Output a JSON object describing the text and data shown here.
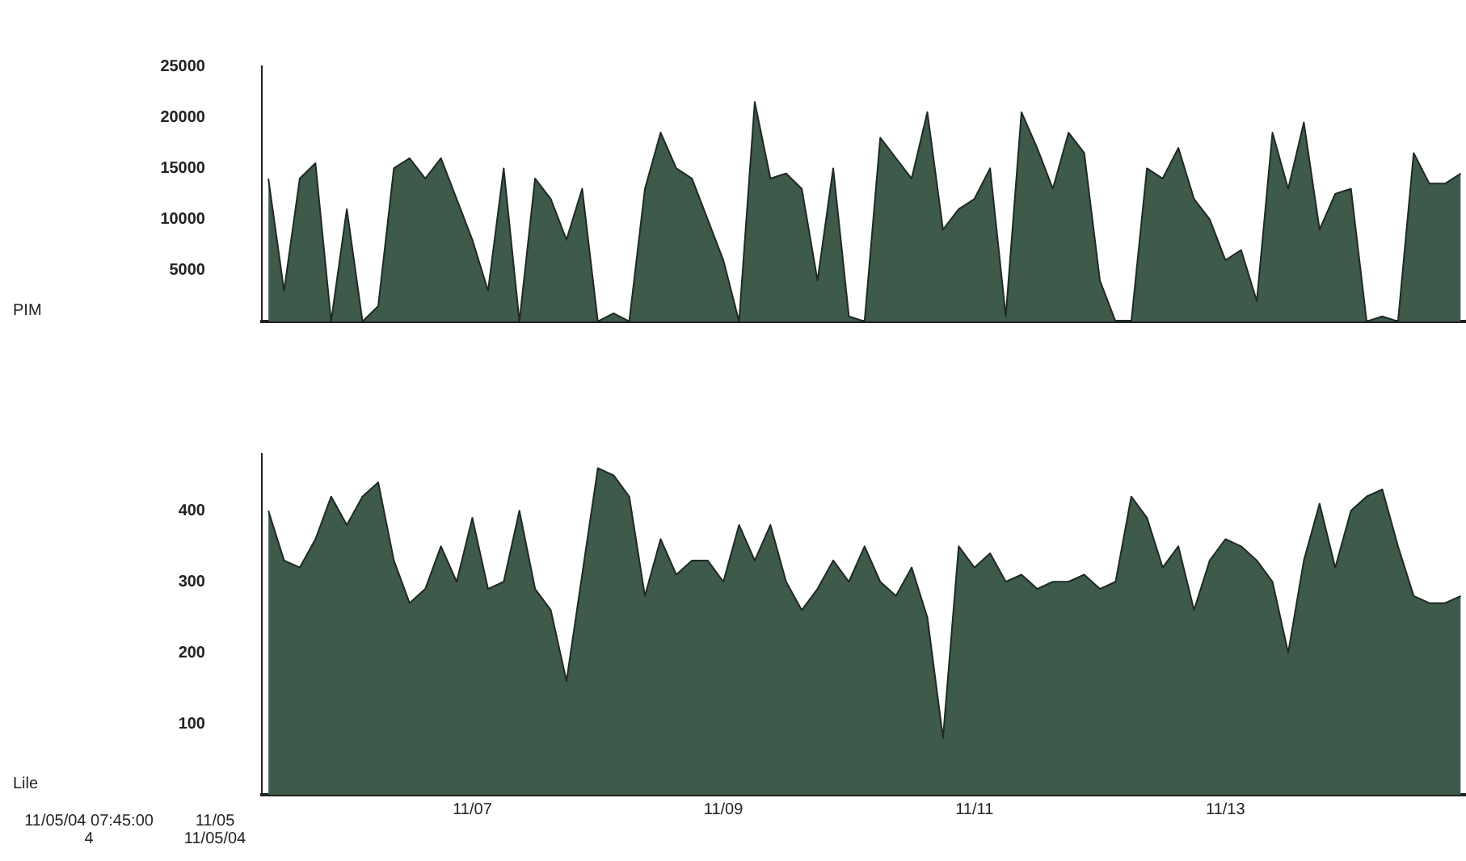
{
  "chart_data": [
    {
      "type": "area",
      "ylabel": "PIM",
      "tick_labels": "y",
      "grid": false,
      "x": [
        "--11-05T09:00",
        "--11-05T12:00",
        "--11-05T15:00",
        "--11-05T18:00",
        "--11-05T21:00",
        "--11-06T00:00",
        "--11-06T03:00",
        "--11-06T06:00",
        "--11-06T09:00",
        "--11-06T12:00",
        "--11-06T15:00",
        "--11-06T18:00",
        "--11-06T21:00",
        "--11-07T00:00",
        "--11-07T03:00",
        "--11-07T06:00",
        "--11-07T09:00",
        "--11-07T12:00",
        "--11-07T15:00",
        "--11-07T18:00",
        "--11-07T21:00",
        "--11-08T00:00",
        "--11-08T03:00",
        "--11-08T06:00",
        "--11-08T09:00",
        "--11-08T12:00",
        "--11-08T15:00",
        "--11-08T18:00",
        "--11-08T21:00",
        "--11-09T00:00",
        "--11-09T03:00",
        "--11-09T06:00",
        "--11-09T09:00",
        "--11-09T12:00",
        "--11-09T15:00",
        "--11-09T18:00",
        "--11-09T21:00",
        "--11-10T00:00",
        "--11-10T03:00",
        "--11-10T06:00",
        "--11-10T09:00",
        "--11-10T12:00",
        "--11-10T15:00",
        "--11-10T18:00",
        "--11-10T21:00",
        "--11-11T00:00",
        "--11-11T03:00",
        "--11-11T06:00",
        "--11-11T09:00",
        "--11-11T12:00",
        "--11-11T15:00",
        "--11-11T18:00",
        "--11-11T21:00",
        "--11-12T00:00",
        "--11-12T03:00",
        "--11-12T06:00",
        "--11-12T09:00",
        "--11-12T12:00",
        "--11-12T15:00",
        "--11-12T18:00",
        "--11-12T21:00",
        "--11-13T00:00",
        "--11-13T03:00",
        "--11-13T06:00",
        "--11-13T09:00",
        "--11-13T12:00",
        "--11-13T15:00",
        "--11-13T18:00",
        "--11-13T21:00",
        "--11-14T00:00",
        "--11-14T03:00",
        "--11-14T06:00",
        "--11-14T09:00",
        "--11-14T12:00",
        "--11-14T15:00",
        "--11-14T18:00",
        "--11-14T21:00"
      ],
      "xlim": [
        "--11-05T07:45",
        "--11-14T22:00"
      ],
      "ylim": [
        0,
        25000
      ],
      "yticks": [
        5000,
        10000,
        15000,
        20000,
        25000
      ],
      "series": [
        {
          "color": "#3d5a4a",
          "values": [
            14000,
            3000,
            14000,
            15500,
            0,
            11000,
            0,
            1500,
            15000,
            16000,
            14000,
            16000,
            12000,
            8000,
            3000,
            15000,
            0,
            14000,
            12000,
            8000,
            13000,
            0,
            800,
            0,
            13000,
            18500,
            15000,
            14000,
            10000,
            6000,
            0,
            21500,
            14000,
            14500,
            13000,
            4000,
            15000,
            500,
            0,
            18000,
            16000,
            14000,
            20500,
            9000,
            11000,
            12000,
            15000,
            500,
            20500,
            17000,
            13000,
            18500,
            16500,
            4000,
            0,
            0,
            15000,
            14000,
            17000,
            12000,
            10000,
            6000,
            7000,
            2000,
            18500,
            13000,
            19500,
            9000,
            12500,
            13000,
            0,
            500,
            0,
            16500,
            13500,
            13500,
            14500
          ]
        }
      ]
    },
    {
      "type": "area",
      "ylabel": "Lile",
      "grid": false,
      "annotations": [
        "11/05/04 07:45:00",
        "4",
        "11/05",
        "11/05/04"
      ],
      "x": [
        "--11-05T09:00",
        "--11-05T12:00",
        "--11-05T15:00",
        "--11-05T18:00",
        "--11-05T21:00",
        "--11-06T00:00",
        "--11-06T03:00",
        "--11-06T06:00",
        "--11-06T09:00",
        "--11-06T12:00",
        "--11-06T15:00",
        "--11-06T18:00",
        "--11-06T21:00",
        "--11-07T00:00",
        "--11-07T03:00",
        "--11-07T06:00",
        "--11-07T09:00",
        "--11-07T12:00",
        "--11-07T15:00",
        "--11-07T18:00",
        "--11-07T21:00",
        "--11-08T00:00",
        "--11-08T03:00",
        "--11-08T06:00",
        "--11-08T09:00",
        "--11-08T12:00",
        "--11-08T15:00",
        "--11-08T18:00",
        "--11-08T21:00",
        "--11-09T00:00",
        "--11-09T03:00",
        "--11-09T06:00",
        "--11-09T09:00",
        "--11-09T12:00",
        "--11-09T15:00",
        "--11-09T18:00",
        "--11-09T21:00",
        "--11-10T00:00",
        "--11-10T03:00",
        "--11-10T06:00",
        "--11-10T09:00",
        "--11-10T12:00",
        "--11-10T15:00",
        "--11-10T18:00",
        "--11-10T21:00",
        "--11-11T00:00",
        "--11-11T03:00",
        "--11-11T06:00",
        "--11-11T09:00",
        "--11-11T12:00",
        "--11-11T15:00",
        "--11-11T18:00",
        "--11-11T21:00",
        "--11-12T00:00",
        "--11-12T03:00",
        "--11-12T06:00",
        "--11-12T09:00",
        "--11-12T12:00",
        "--11-12T15:00",
        "--11-12T18:00",
        "--11-12T21:00",
        "--11-13T00:00",
        "--11-13T03:00",
        "--11-13T06:00",
        "--11-13T09:00",
        "--11-13T12:00",
        "--11-13T15:00",
        "--11-13T18:00",
        "--11-13T21:00",
        "--11-14T00:00",
        "--11-14T03:00",
        "--11-14T06:00",
        "--11-14T09:00",
        "--11-14T12:00",
        "--11-14T15:00",
        "--11-14T18:00",
        "--11-14T21:00"
      ],
      "xlim": [
        "--11-05T07:45",
        "--11-14T22:00"
      ],
      "xticks": [
        {
          "value": "--11-07T00:00",
          "label": "11/07"
        },
        {
          "value": "--11-09T00:00",
          "label": "11/09"
        },
        {
          "value": "--11-11T00:00",
          "label": "11/11"
        },
        {
          "value": "--11-13T00:00",
          "label": "11/13"
        }
      ],
      "ylim": [
        0,
        480
      ],
      "yticks": [
        100,
        200,
        300,
        400
      ],
      "series": [
        {
          "color": "#3d5a4a",
          "values": [
            400,
            330,
            320,
            360,
            420,
            380,
            420,
            440,
            330,
            270,
            290,
            350,
            300,
            390,
            290,
            300,
            400,
            290,
            260,
            160,
            310,
            460,
            450,
            420,
            280,
            360,
            310,
            330,
            330,
            300,
            380,
            330,
            380,
            300,
            260,
            290,
            330,
            300,
            350,
            300,
            280,
            320,
            250,
            80,
            350,
            320,
            340,
            300,
            310,
            290,
            300,
            300,
            310,
            290,
            300,
            420,
            390,
            320,
            350,
            260,
            330,
            360,
            350,
            330,
            300,
            200,
            330,
            410,
            320,
            400,
            420,
            430,
            350,
            280,
            270,
            270,
            280
          ]
        }
      ]
    }
  ]
}
